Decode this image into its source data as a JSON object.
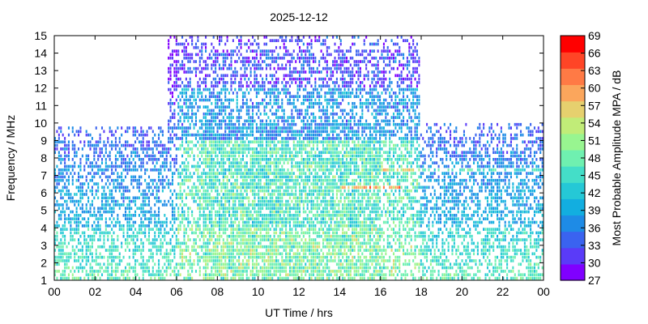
{
  "chart_data": {
    "type": "heatmap",
    "title": "2025-12-12",
    "xlabel": "UT Time / hrs",
    "ylabel": "Frequency / MHz",
    "colorbar_label": "Most Probable Amplitude MPA / dB",
    "xlim": [
      0,
      24
    ],
    "ylim": [
      1,
      15
    ],
    "x_ticks": [
      "00",
      "02",
      "04",
      "06",
      "08",
      "10",
      "12",
      "14",
      "16",
      "18",
      "20",
      "22",
      "00"
    ],
    "x_tick_values": [
      0,
      2,
      4,
      6,
      8,
      10,
      12,
      14,
      16,
      18,
      20,
      22,
      24
    ],
    "y_ticks": [
      "1",
      "2",
      "3",
      "4",
      "5",
      "6",
      "7",
      "8",
      "9",
      "10",
      "11",
      "12",
      "13",
      "14",
      "15"
    ],
    "y_tick_values": [
      1,
      2,
      3,
      4,
      5,
      6,
      7,
      8,
      9,
      10,
      11,
      12,
      13,
      14,
      15
    ],
    "colorbar_range": [
      27,
      69
    ],
    "colorbar_ticks": [
      "27",
      "30",
      "33",
      "36",
      "39",
      "42",
      "45",
      "48",
      "51",
      "54",
      "57",
      "60",
      "63",
      "66",
      "69"
    ],
    "colorbar_colors": [
      "#8000ff",
      "#5a3bf8",
      "#3a63f0",
      "#1e8be6",
      "#12aee0",
      "#25c8d6",
      "#44dec8",
      "#6ff0b0",
      "#98f590",
      "#c1ec78",
      "#e6d06e",
      "#fba65c",
      "#ff7a45",
      "#ff4526",
      "#ff0000"
    ],
    "grid": false,
    "coverage": [
      {
        "t_start": 0,
        "t_end": 5.6,
        "f_max": 9.8
      },
      {
        "t_start": 5.6,
        "t_end": 7.3,
        "f_max": 15
      },
      {
        "t_start": 7.3,
        "t_end": 18.0,
        "f_max": 15
      },
      {
        "t_start": 18.0,
        "t_end": 24,
        "f_max": 10.0
      }
    ]
  }
}
